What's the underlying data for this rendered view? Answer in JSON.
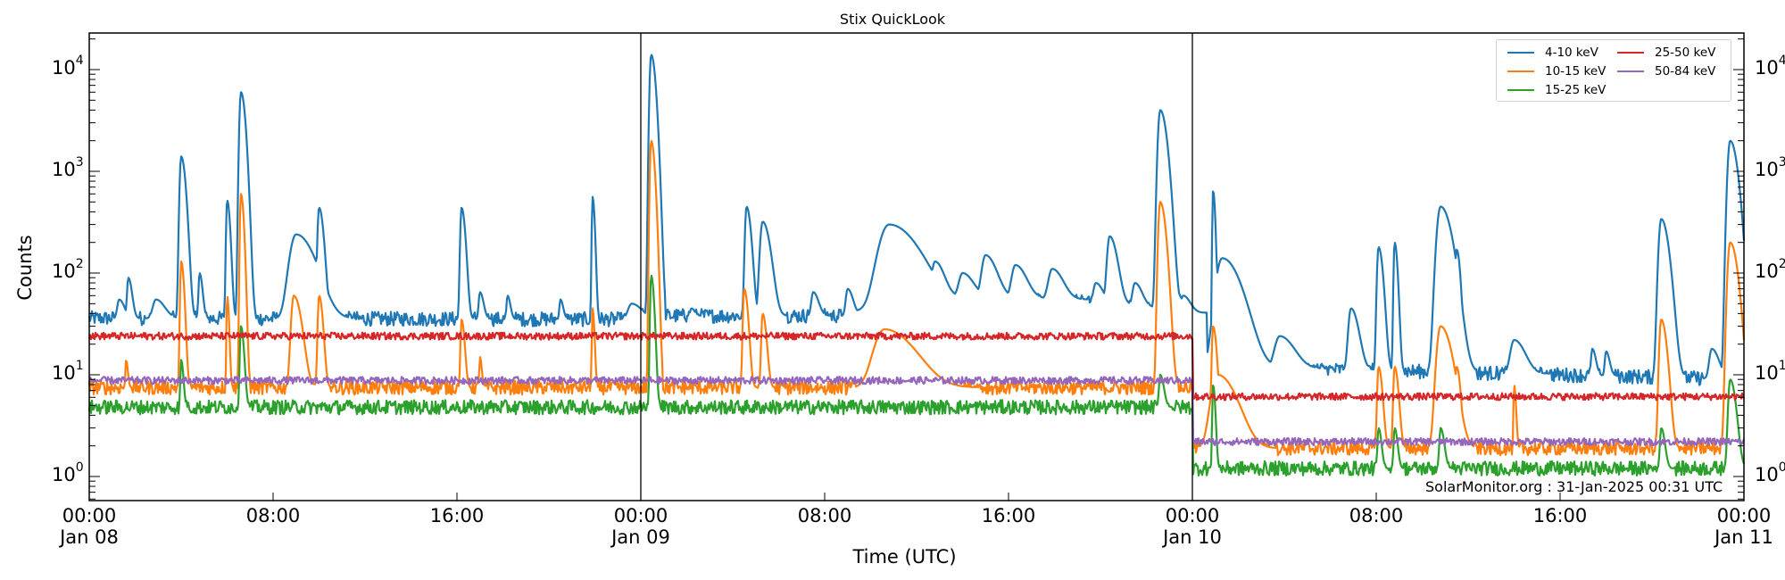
{
  "chart_data": {
    "type": "line",
    "title": "Stix QuickLook",
    "xlabel": "Time (UTC)",
    "ylabel": "Counts",
    "yscale": "log",
    "ylim": [
      0.58,
      23000
    ],
    "xlim_hours": [
      0,
      72
    ],
    "grid": false,
    "legend_position": "upper right",
    "watermark": "SolarMonitor.org : 31-Jan-2025 00:31 UTC",
    "x_ticks": [
      {
        "hour": 0,
        "line1": "00:00",
        "line2": "Jan 08"
      },
      {
        "hour": 8,
        "line1": "08:00",
        "line2": ""
      },
      {
        "hour": 16,
        "line1": "16:00",
        "line2": ""
      },
      {
        "hour": 24,
        "line1": "00:00",
        "line2": "Jan 09"
      },
      {
        "hour": 32,
        "line1": "08:00",
        "line2": ""
      },
      {
        "hour": 40,
        "line1": "16:00",
        "line2": ""
      },
      {
        "hour": 48,
        "line1": "00:00",
        "line2": "Jan 10"
      },
      {
        "hour": 56,
        "line1": "08:00",
        "line2": ""
      },
      {
        "hour": 64,
        "line1": "16:00",
        "line2": ""
      },
      {
        "hour": 72,
        "line1": "00:00",
        "line2": "Jan 11"
      }
    ],
    "y_ticks": [
      {
        "exp": 0,
        "base": "10",
        "sup": "0"
      },
      {
        "exp": 1,
        "base": "10",
        "sup": "1"
      },
      {
        "exp": 2,
        "base": "10",
        "sup": "2"
      },
      {
        "exp": 3,
        "base": "10",
        "sup": "3"
      },
      {
        "exp": 4,
        "base": "10",
        "sup": "4"
      }
    ],
    "day_boundaries_hours": [
      24,
      48
    ],
    "series": [
      {
        "name": "4-10 keV",
        "color": "#1f77b4",
        "baseline": [
          [
            0,
            36
          ],
          [
            24,
            35
          ],
          [
            24.0,
            38
          ],
          [
            34.5,
            38
          ],
          [
            36,
            60
          ],
          [
            42,
            55
          ],
          [
            47.9,
            40
          ],
          [
            48,
            12
          ],
          [
            72,
            9
          ]
        ],
        "peaks": [
          [
            1.7,
            90,
            0.1
          ],
          [
            1.3,
            55,
            0.15
          ],
          [
            2.9,
            55,
            0.25
          ],
          [
            4.0,
            1400,
            0.12
          ],
          [
            4.8,
            100,
            0.08
          ],
          [
            6.0,
            520,
            0.08
          ],
          [
            6.6,
            6000,
            0.12
          ],
          [
            9.0,
            240,
            0.5
          ],
          [
            10.0,
            440,
            0.12
          ],
          [
            16.2,
            440,
            0.1
          ],
          [
            17.0,
            65,
            0.1
          ],
          [
            18.2,
            60,
            0.08
          ],
          [
            20.5,
            55,
            0.08
          ],
          [
            21.9,
            560,
            0.06
          ],
          [
            23.6,
            50,
            0.3
          ],
          [
            24.45,
            14000,
            0.12
          ],
          [
            26.2,
            45,
            0.1
          ],
          [
            28.6,
            450,
            0.12
          ],
          [
            29.3,
            320,
            0.2
          ],
          [
            31.5,
            65,
            0.15
          ],
          [
            33.0,
            70,
            0.15
          ],
          [
            34.8,
            300,
            0.8
          ],
          [
            35.6,
            220,
            0.3
          ],
          [
            36.8,
            130,
            0.25
          ],
          [
            38.0,
            100,
            0.3
          ],
          [
            39.0,
            150,
            0.3
          ],
          [
            40.3,
            120,
            0.3
          ],
          [
            41.9,
            110,
            0.3
          ],
          [
            43.8,
            80,
            0.2
          ],
          [
            44.4,
            230,
            0.2
          ],
          [
            45.5,
            80,
            0.2
          ],
          [
            46.6,
            4000,
            0.18
          ],
          [
            47.2,
            70,
            0.2
          ],
          [
            47.6,
            60,
            0.2
          ],
          [
            48.9,
            650,
            0.06
          ],
          [
            49.3,
            140,
            0.5
          ],
          [
            50.3,
            25,
            0.3
          ],
          [
            51.8,
            24,
            0.4
          ],
          [
            54.9,
            45,
            0.2
          ],
          [
            56.1,
            180,
            0.12
          ],
          [
            56.8,
            200,
            0.08
          ],
          [
            58.8,
            450,
            0.3
          ],
          [
            59.5,
            170,
            0.1
          ],
          [
            62.0,
            22,
            0.3
          ],
          [
            65.4,
            18,
            0.1
          ],
          [
            66.0,
            17,
            0.1
          ],
          [
            68.4,
            340,
            0.2
          ],
          [
            70.6,
            18,
            0.2
          ],
          [
            71.4,
            2000,
            0.2
          ]
        ]
      },
      {
        "name": "10-15 keV",
        "color": "#ff7f0e",
        "baseline": [
          [
            0,
            7.5
          ],
          [
            24,
            7.5
          ],
          [
            48,
            7.5
          ],
          [
            48.0,
            1.9
          ],
          [
            72,
            1.9
          ]
        ],
        "peaks": [
          [
            1.6,
            14,
            0.05
          ],
          [
            4.0,
            130,
            0.08
          ],
          [
            6.0,
            60,
            0.05
          ],
          [
            6.6,
            600,
            0.08
          ],
          [
            8.9,
            60,
            0.2
          ],
          [
            10.0,
            60,
            0.1
          ],
          [
            16.2,
            35,
            0.08
          ],
          [
            17.0,
            15,
            0.05
          ],
          [
            21.9,
            45,
            0.05
          ],
          [
            24.45,
            2000,
            0.1
          ],
          [
            28.5,
            70,
            0.1
          ],
          [
            29.3,
            40,
            0.1
          ],
          [
            34.6,
            28,
            0.8
          ],
          [
            35.6,
            20,
            0.2
          ],
          [
            46.6,
            500,
            0.15
          ],
          [
            48.9,
            30,
            0.1
          ],
          [
            49.1,
            10,
            0.5
          ],
          [
            56.1,
            12,
            0.1
          ],
          [
            56.8,
            12,
            0.1
          ],
          [
            58.8,
            30,
            0.3
          ],
          [
            59.5,
            12,
            0.1
          ],
          [
            62.0,
            8,
            0.05
          ],
          [
            68.4,
            35,
            0.15
          ],
          [
            71.4,
            200,
            0.2
          ]
        ]
      },
      {
        "name": "15-25 keV",
        "color": "#2ca02c",
        "baseline": [
          [
            0,
            4.8
          ],
          [
            24,
            4.8
          ],
          [
            48,
            4.8
          ],
          [
            48.0,
            1.2
          ],
          [
            72,
            1.2
          ]
        ],
        "peaks": [
          [
            4.0,
            14,
            0.06
          ],
          [
            6.6,
            30,
            0.08
          ],
          [
            24.45,
            95,
            0.08
          ],
          [
            46.6,
            10,
            0.1
          ],
          [
            48.9,
            8,
            0.06
          ],
          [
            56.1,
            3,
            0.08
          ],
          [
            56.8,
            3,
            0.08
          ],
          [
            58.8,
            3,
            0.1
          ],
          [
            68.4,
            3,
            0.1
          ],
          [
            71.4,
            9,
            0.15
          ]
        ]
      },
      {
        "name": "25-50 keV",
        "color": "#d62728",
        "baseline": [
          [
            0,
            24
          ],
          [
            24,
            24
          ],
          [
            48,
            24
          ],
          [
            48.0,
            6.1
          ],
          [
            72,
            6.1
          ]
        ],
        "peaks": []
      },
      {
        "name": "50-84 keV",
        "color": "#9467bd",
        "baseline": [
          [
            0,
            8.8
          ],
          [
            24,
            8.8
          ],
          [
            48,
            8.8
          ],
          [
            48.0,
            2.2
          ],
          [
            72,
            2.2
          ]
        ],
        "peaks": []
      }
    ]
  }
}
